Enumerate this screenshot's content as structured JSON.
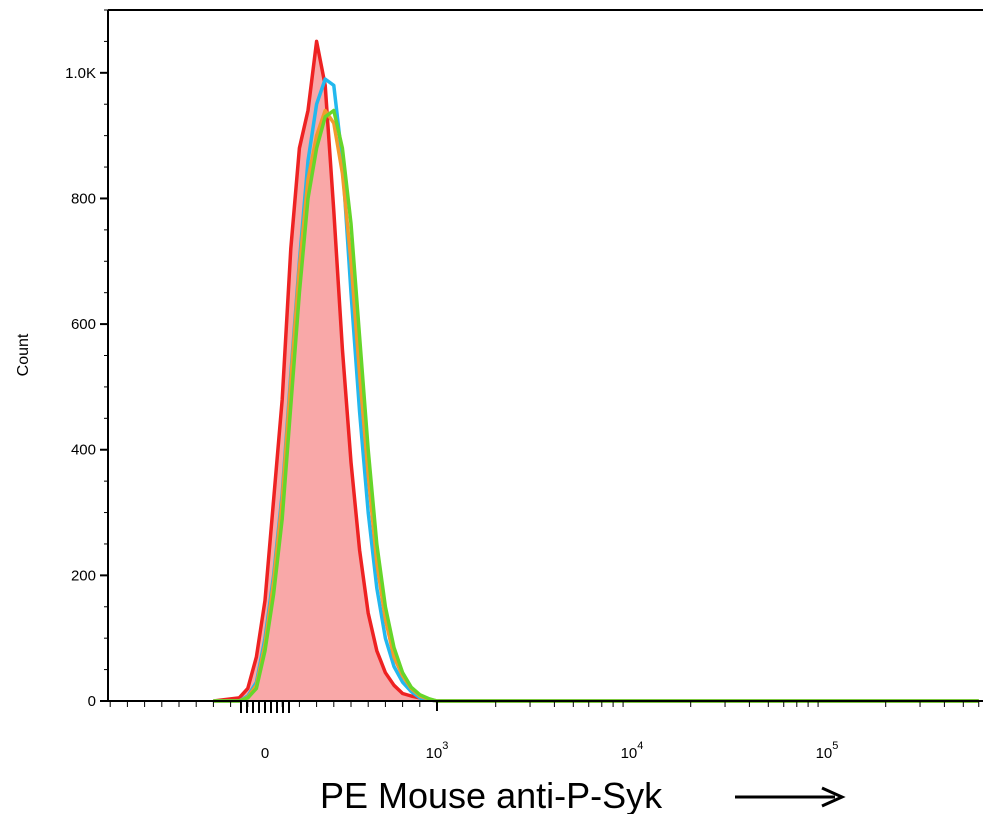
{
  "chart_data": {
    "type": "histogram",
    "title": "",
    "xlabel": "PE Mouse anti-P-Syk",
    "ylabel": "Count",
    "x_scale": "biexponential",
    "xlim": [
      -300,
      600000
    ],
    "ylim": [
      0,
      1100
    ],
    "grid": false,
    "legend": "none",
    "y_ticks": [
      {
        "value": 0,
        "label": "0"
      },
      {
        "value": 200,
        "label": "200"
      },
      {
        "value": 400,
        "label": "400"
      },
      {
        "value": 600,
        "label": "600"
      },
      {
        "value": 800,
        "label": "800"
      },
      {
        "value": 1000,
        "label": "1.0K"
      }
    ],
    "x_ticks": [
      {
        "value": 0,
        "base": "0",
        "exp": ""
      },
      {
        "value": 1000,
        "base": "10",
        "exp": "3"
      },
      {
        "value": 10000,
        "base": "10",
        "exp": "4"
      },
      {
        "value": 100000,
        "base": "10",
        "exp": "5"
      }
    ],
    "series": [
      {
        "color": "#ee2222",
        "fill": "#f9a8a8",
        "filled": true,
        "x": [
          -300,
          -150,
          -100,
          -50,
          0,
          50,
          100,
          150,
          200,
          250,
          300,
          350,
          400,
          450,
          500,
          550,
          600,
          650,
          700,
          750,
          800,
          850,
          900,
          950,
          1000,
          2000,
          10000,
          600000
        ],
        "y": [
          0,
          5,
          20,
          70,
          160,
          320,
          480,
          720,
          880,
          940,
          1050,
          980,
          780,
          560,
          380,
          240,
          140,
          80,
          45,
          25,
          12,
          8,
          5,
          2,
          0,
          0,
          0,
          0
        ]
      },
      {
        "color": "#22b8ee",
        "fill": "",
        "filled": false,
        "x": [
          -300,
          -150,
          -100,
          -50,
          0,
          50,
          100,
          150,
          200,
          250,
          300,
          350,
          400,
          450,
          500,
          550,
          600,
          650,
          700,
          750,
          800,
          850,
          900,
          950,
          1000,
          2000,
          10000,
          600000
        ],
        "y": [
          0,
          0,
          8,
          30,
          100,
          200,
          330,
          520,
          700,
          860,
          950,
          990,
          980,
          860,
          650,
          460,
          300,
          180,
          100,
          55,
          30,
          15,
          5,
          2,
          0,
          0,
          0,
          0
        ]
      },
      {
        "color": "#f39a2c",
        "fill": "",
        "filled": false,
        "x": [
          -300,
          -150,
          -100,
          -50,
          0,
          50,
          100,
          150,
          200,
          250,
          300,
          350,
          400,
          450,
          500,
          550,
          600,
          650,
          700,
          750,
          800,
          850,
          900,
          950,
          1000,
          2000,
          10000,
          600000
        ],
        "y": [
          0,
          0,
          6,
          25,
          90,
          190,
          320,
          510,
          690,
          830,
          900,
          940,
          920,
          840,
          700,
          520,
          360,
          220,
          130,
          70,
          40,
          20,
          8,
          3,
          0,
          0,
          0,
          0
        ]
      },
      {
        "color": "#66d62a",
        "fill": "",
        "filled": false,
        "x": [
          -300,
          -150,
          -100,
          -50,
          0,
          50,
          100,
          150,
          200,
          250,
          300,
          350,
          400,
          450,
          500,
          550,
          600,
          650,
          700,
          750,
          800,
          850,
          900,
          950,
          1000,
          2000,
          10000,
          600000
        ],
        "y": [
          0,
          0,
          5,
          20,
          80,
          170,
          290,
          470,
          650,
          800,
          880,
          930,
          940,
          880,
          760,
          580,
          400,
          250,
          150,
          85,
          45,
          22,
          10,
          4,
          0,
          0,
          0,
          0
        ]
      }
    ]
  }
}
